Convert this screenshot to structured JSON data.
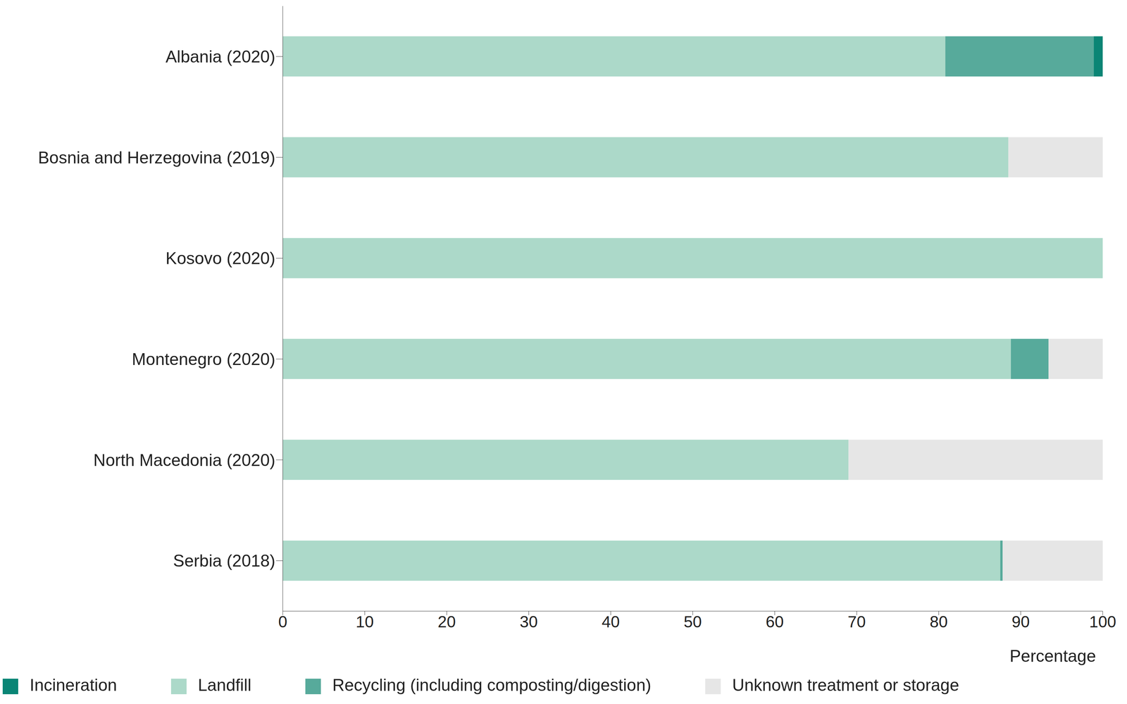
{
  "chart_data": {
    "type": "bar",
    "orientation": "horizontal",
    "stacked": true,
    "categories": [
      "Albania (2020)",
      "Bosnia and Herzegovina (2019)",
      "Kosovo (2020)",
      "Montenegro (2020)",
      "North Macedonia (2020)",
      "Serbia (2018)"
    ],
    "x_label": "Percentage",
    "xlim": [
      0,
      100
    ],
    "xticks": [
      0,
      10,
      20,
      30,
      40,
      50,
      60,
      70,
      80,
      90,
      100
    ],
    "legend": "bottom",
    "series": [
      {
        "name": "Landfill",
        "color": "#acd9c9",
        "values": [
          80.8,
          88.5,
          100,
          88.8,
          69.0,
          87.5
        ]
      },
      {
        "name": "Recycling (including composting/digestion)",
        "color": "#57aa9b",
        "values": [
          18.1,
          0,
          0,
          4.6,
          0,
          0.3
        ]
      },
      {
        "name": "Incineration",
        "color": "#0a8575",
        "values": [
          1.1,
          0,
          0,
          0,
          0,
          0
        ]
      },
      {
        "name": "Unknown treatment or storage",
        "color": "#e6e6e6",
        "values": [
          0,
          11.5,
          0,
          6.6,
          31.0,
          12.2
        ]
      }
    ]
  }
}
